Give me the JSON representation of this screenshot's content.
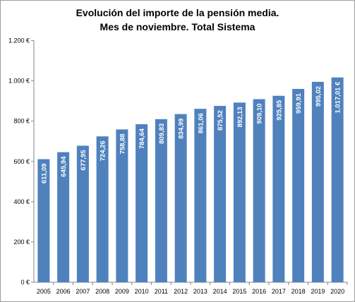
{
  "chart_data": {
    "type": "bar",
    "title_line1": "Evolución del importe de la pensión media.",
    "title_line2": "Mes de noviembre. Total Sistema",
    "categories": [
      "2005",
      "2006",
      "2007",
      "2008",
      "2009",
      "2010",
      "2011",
      "2012",
      "2013",
      "2014",
      "2015",
      "2016",
      "2017",
      "2018",
      "2019",
      "2020"
    ],
    "values": [
      611.09,
      645.94,
      677.95,
      724.26,
      758.88,
      784.64,
      809.83,
      834.99,
      861.06,
      875.52,
      892.13,
      909.1,
      925.85,
      959.91,
      995.02,
      1017.01
    ],
    "data_labels": [
      "611,09",
      "645,94",
      "677,95",
      "724,26",
      "758,88",
      "784,64",
      "809,83",
      "834,99",
      "861,06",
      "875,52",
      "892,13",
      "909,10",
      "925,85",
      "959,91",
      "995,02",
      "1.017,01 €"
    ],
    "y_ticks": [
      0,
      200,
      400,
      600,
      800,
      1000,
      1200
    ],
    "y_tick_labels": [
      "0 €",
      "200 €",
      "400 €",
      "600 €",
      "800 €",
      "1.000 €",
      "1.200 €"
    ],
    "ylim": [
      0,
      1200
    ],
    "bar_color": "#4f81bd",
    "grid": false,
    "legend": "none"
  }
}
